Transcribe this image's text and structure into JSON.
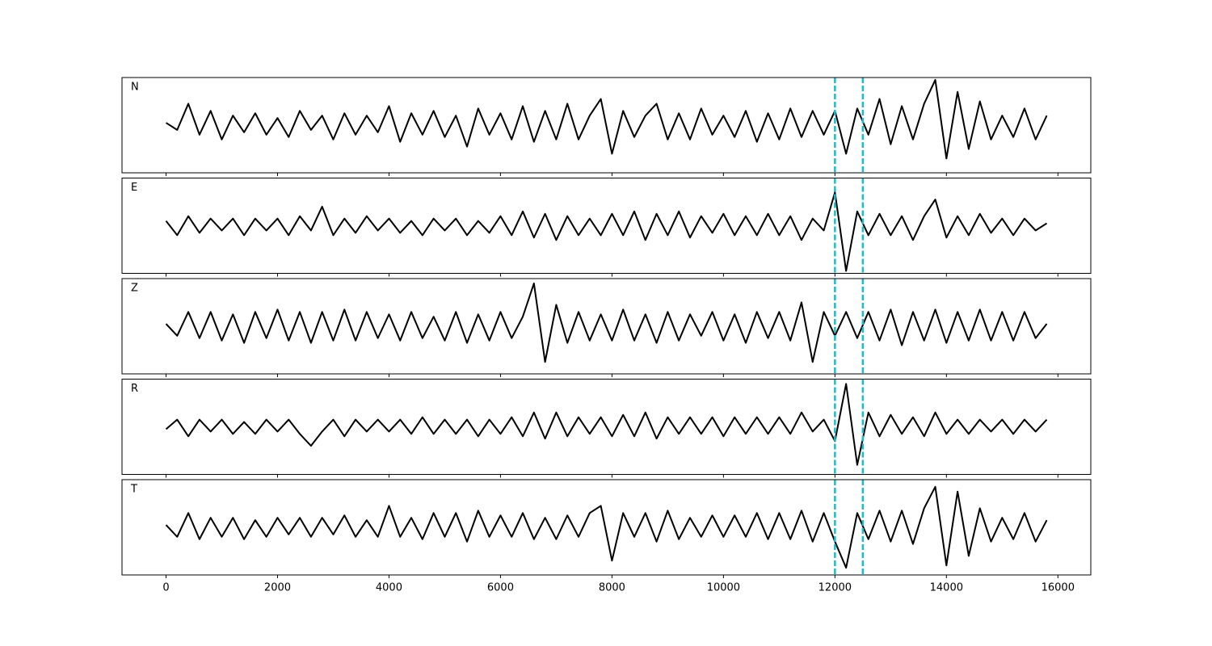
{
  "chart_data": [
    {
      "type": "line",
      "label": "N",
      "color": "#000000",
      "vlines": [
        12000,
        12500
      ],
      "vline_color": "#17becf",
      "xlim": [
        -790,
        16590
      ],
      "ylim": [
        -1,
        1
      ],
      "xticks": [
        0,
        2000,
        4000,
        6000,
        8000,
        10000,
        12000,
        14000,
        16000
      ],
      "x": [
        0,
        200,
        400,
        600,
        800,
        1000,
        1200,
        1400,
        1600,
        1800,
        2000,
        2200,
        2400,
        2600,
        2800,
        3000,
        3200,
        3400,
        3600,
        3800,
        4000,
        4200,
        4400,
        4600,
        4800,
        5000,
        5200,
        5400,
        5600,
        5800,
        6000,
        6200,
        6400,
        6600,
        6800,
        7000,
        7200,
        7400,
        7600,
        7800,
        8000,
        8200,
        8400,
        8600,
        8800,
        9000,
        9200,
        9400,
        9600,
        9800,
        10000,
        10200,
        10400,
        10600,
        10800,
        11000,
        11200,
        11400,
        11600,
        11800,
        12000,
        12200,
        12400,
        12600,
        12800,
        13000,
        13200,
        13400,
        13600,
        13800,
        14000,
        14200,
        14400,
        14600,
        14800,
        15000,
        15200,
        15400,
        15600,
        15800
      ],
      "values": [
        0.05,
        -0.1,
        0.45,
        -0.2,
        0.3,
        -0.3,
        0.2,
        -0.15,
        0.25,
        -0.2,
        0.15,
        -0.25,
        0.3,
        -0.1,
        0.2,
        -0.3,
        0.25,
        -0.2,
        0.2,
        -0.15,
        0.4,
        -0.35,
        0.25,
        -0.2,
        0.3,
        -0.25,
        0.2,
        -0.45,
        0.35,
        -0.2,
        0.25,
        -0.3,
        0.4,
        -0.35,
        0.3,
        -0.3,
        0.45,
        -0.3,
        0.2,
        0.55,
        -0.6,
        0.3,
        -0.25,
        0.2,
        0.45,
        -0.3,
        0.25,
        -0.3,
        0.35,
        -0.2,
        0.2,
        -0.25,
        0.3,
        -0.35,
        0.25,
        -0.3,
        0.35,
        -0.25,
        0.3,
        -0.2,
        0.3,
        -0.6,
        0.35,
        -0.2,
        0.55,
        -0.4,
        0.4,
        -0.3,
        0.45,
        0.95,
        -0.7,
        0.7,
        -0.5,
        0.5,
        -0.3,
        0.2,
        -0.25,
        0.35,
        -0.3,
        0.2
      ]
    },
    {
      "type": "line",
      "label": "E",
      "color": "#000000",
      "vlines": [
        12000,
        12500
      ],
      "vline_color": "#17becf",
      "xlim": [
        -790,
        16590
      ],
      "ylim": [
        -1,
        1
      ],
      "xticks": [
        0,
        2000,
        4000,
        6000,
        8000,
        10000,
        12000,
        14000,
        16000
      ],
      "x": [
        0,
        200,
        400,
        600,
        800,
        1000,
        1200,
        1400,
        1600,
        1800,
        2000,
        2200,
        2400,
        2600,
        2800,
        3000,
        3200,
        3400,
        3600,
        3800,
        4000,
        4200,
        4400,
        4600,
        4800,
        5000,
        5200,
        5400,
        5600,
        5800,
        6000,
        6200,
        6400,
        6600,
        6800,
        7000,
        7200,
        7400,
        7600,
        7800,
        8000,
        8200,
        8400,
        8600,
        8800,
        9000,
        9200,
        9400,
        9600,
        9800,
        10000,
        10200,
        10400,
        10600,
        10800,
        11000,
        11200,
        11400,
        11600,
        11800,
        12000,
        12200,
        12400,
        12600,
        12800,
        13000,
        13200,
        13400,
        13600,
        13800,
        14000,
        14200,
        14400,
        14600,
        14800,
        15000,
        15200,
        15400,
        15600,
        15800
      ],
      "values": [
        0.1,
        -0.2,
        0.2,
        -0.15,
        0.15,
        -0.1,
        0.15,
        -0.2,
        0.15,
        -0.1,
        0.15,
        -0.2,
        0.2,
        -0.1,
        0.4,
        -0.2,
        0.15,
        -0.15,
        0.2,
        -0.1,
        0.15,
        -0.15,
        0.1,
        -0.2,
        0.15,
        -0.1,
        0.15,
        -0.2,
        0.1,
        -0.15,
        0.2,
        -0.2,
        0.3,
        -0.25,
        0.25,
        -0.3,
        0.2,
        -0.2,
        0.15,
        -0.2,
        0.25,
        -0.2,
        0.3,
        -0.3,
        0.25,
        -0.2,
        0.3,
        -0.25,
        0.2,
        -0.15,
        0.25,
        -0.2,
        0.2,
        -0.2,
        0.25,
        -0.2,
        0.2,
        -0.3,
        0.15,
        -0.1,
        0.7,
        -0.95,
        0.3,
        -0.2,
        0.25,
        -0.2,
        0.2,
        -0.3,
        0.2,
        0.55,
        -0.25,
        0.2,
        -0.2,
        0.25,
        -0.15,
        0.15,
        -0.2,
        0.15,
        -0.1,
        0.05
      ]
    },
    {
      "type": "line",
      "label": "Z",
      "color": "#000000",
      "vlines": [
        12000,
        12500
      ],
      "vline_color": "#17becf",
      "xlim": [
        -790,
        16590
      ],
      "ylim": [
        -1,
        1
      ],
      "xticks": [
        0,
        2000,
        4000,
        6000,
        8000,
        10000,
        12000,
        14000,
        16000
      ],
      "x": [
        0,
        200,
        400,
        600,
        800,
        1000,
        1200,
        1400,
        1600,
        1800,
        2000,
        2200,
        2400,
        2600,
        2800,
        3000,
        3200,
        3400,
        3600,
        3800,
        4000,
        4200,
        4400,
        4600,
        4800,
        5000,
        5200,
        5400,
        5600,
        5800,
        6000,
        6200,
        6400,
        6600,
        6800,
        7000,
        7200,
        7400,
        7600,
        7800,
        8000,
        8200,
        8400,
        8600,
        8800,
        9000,
        9200,
        9400,
        9600,
        9800,
        10000,
        10200,
        10400,
        10600,
        10800,
        11000,
        11200,
        11400,
        11600,
        11800,
        12000,
        12200,
        12400,
        12600,
        12800,
        13000,
        13200,
        13400,
        13600,
        13800,
        14000,
        14200,
        14400,
        14600,
        14800,
        15000,
        15200,
        15400,
        15600,
        15800
      ],
      "values": [
        0.05,
        -0.2,
        0.3,
        -0.25,
        0.3,
        -0.3,
        0.25,
        -0.35,
        0.3,
        -0.25,
        0.35,
        -0.3,
        0.3,
        -0.35,
        0.3,
        -0.3,
        0.35,
        -0.3,
        0.3,
        -0.25,
        0.25,
        -0.3,
        0.3,
        -0.25,
        0.2,
        -0.3,
        0.3,
        -0.35,
        0.25,
        -0.3,
        0.3,
        -0.25,
        0.2,
        0.9,
        -0.75,
        0.45,
        -0.35,
        0.3,
        -0.3,
        0.25,
        -0.3,
        0.35,
        -0.3,
        0.25,
        -0.35,
        0.3,
        -0.3,
        0.25,
        -0.2,
        0.3,
        -0.3,
        0.25,
        -0.35,
        0.3,
        -0.25,
        0.3,
        -0.3,
        0.5,
        -0.75,
        0.3,
        -0.2,
        0.3,
        -0.25,
        0.3,
        -0.3,
        0.35,
        -0.4,
        0.3,
        -0.3,
        0.35,
        -0.35,
        0.3,
        -0.3,
        0.35,
        -0.3,
        0.3,
        -0.3,
        0.3,
        -0.25,
        0.05
      ]
    },
    {
      "type": "line",
      "label": "R",
      "color": "#000000",
      "vlines": [
        12000,
        12500
      ],
      "vline_color": "#17becf",
      "xlim": [
        -790,
        16590
      ],
      "ylim": [
        -1,
        1
      ],
      "xticks": [
        0,
        2000,
        4000,
        6000,
        8000,
        10000,
        12000,
        14000,
        16000
      ],
      "x": [
        0,
        200,
        400,
        600,
        800,
        1000,
        1200,
        1400,
        1600,
        1800,
        2000,
        2200,
        2400,
        2600,
        2800,
        3000,
        3200,
        3400,
        3600,
        3800,
        4000,
        4200,
        4400,
        4600,
        4800,
        5000,
        5200,
        5400,
        5600,
        5800,
        6000,
        6200,
        6400,
        6600,
        6800,
        7000,
        7200,
        7400,
        7600,
        7800,
        8000,
        8200,
        8400,
        8600,
        8800,
        9000,
        9200,
        9400,
        9600,
        9800,
        10000,
        10200,
        10400,
        10600,
        10800,
        11000,
        11200,
        11400,
        11600,
        11800,
        12000,
        12200,
        12400,
        12600,
        12800,
        13000,
        13200,
        13400,
        13600,
        13800,
        14000,
        14200,
        14400,
        14600,
        14800,
        15000,
        15200,
        15400,
        15600,
        15800
      ],
      "values": [
        -0.05,
        0.15,
        -0.2,
        0.15,
        -0.1,
        0.15,
        -0.15,
        0.1,
        -0.15,
        0.15,
        -0.1,
        0.15,
        -0.15,
        -0.4,
        -0.1,
        0.15,
        -0.2,
        0.15,
        -0.1,
        0.15,
        -0.1,
        0.15,
        -0.15,
        0.2,
        -0.15,
        0.15,
        -0.15,
        0.15,
        -0.2,
        0.15,
        -0.15,
        0.2,
        -0.2,
        0.3,
        -0.25,
        0.3,
        -0.2,
        0.2,
        -0.15,
        0.2,
        -0.2,
        0.25,
        -0.2,
        0.3,
        -0.25,
        0.2,
        -0.15,
        0.2,
        -0.15,
        0.2,
        -0.2,
        0.2,
        -0.15,
        0.2,
        -0.15,
        0.2,
        -0.15,
        0.3,
        -0.1,
        0.15,
        -0.3,
        0.9,
        -0.8,
        0.3,
        -0.2,
        0.25,
        -0.15,
        0.2,
        -0.2,
        0.3,
        -0.15,
        0.15,
        -0.15,
        0.15,
        -0.1,
        0.15,
        -0.15,
        0.15,
        -0.1,
        0.15
      ]
    },
    {
      "type": "line",
      "label": "T",
      "color": "#000000",
      "vlines": [
        12000,
        12500
      ],
      "vline_color": "#17becf",
      "xlim": [
        -790,
        16590
      ],
      "ylim": [
        -1,
        1
      ],
      "xticks": [
        0,
        2000,
        4000,
        6000,
        8000,
        10000,
        12000,
        14000,
        16000
      ],
      "x": [
        0,
        200,
        400,
        600,
        800,
        1000,
        1200,
        1400,
        1600,
        1800,
        2000,
        2200,
        2400,
        2600,
        2800,
        3000,
        3200,
        3400,
        3600,
        3800,
        4000,
        4200,
        4400,
        4600,
        4800,
        5000,
        5200,
        5400,
        5600,
        5800,
        6000,
        6200,
        6400,
        6600,
        6800,
        7000,
        7200,
        7400,
        7600,
        7800,
        8000,
        8200,
        8400,
        8600,
        8800,
        9000,
        9200,
        9400,
        9600,
        9800,
        10000,
        10200,
        10400,
        10600,
        10800,
        11000,
        11200,
        11400,
        11600,
        11800,
        12000,
        12200,
        12400,
        12600,
        12800,
        13000,
        13200,
        13400,
        13600,
        13800,
        14000,
        14200,
        14400,
        14600,
        14800,
        15000,
        15200,
        15400,
        15600,
        15800
      ],
      "values": [
        0.05,
        -0.2,
        0.3,
        -0.25,
        0.2,
        -0.2,
        0.2,
        -0.25,
        0.15,
        -0.2,
        0.2,
        -0.15,
        0.2,
        -0.2,
        0.2,
        -0.15,
        0.25,
        -0.2,
        0.15,
        -0.2,
        0.45,
        -0.2,
        0.2,
        -0.25,
        0.3,
        -0.2,
        0.3,
        -0.3,
        0.35,
        -0.2,
        0.25,
        -0.2,
        0.3,
        -0.25,
        0.2,
        -0.25,
        0.25,
        -0.2,
        0.3,
        0.45,
        -0.7,
        0.3,
        -0.2,
        0.3,
        -0.3,
        0.35,
        -0.25,
        0.2,
        -0.2,
        0.25,
        -0.2,
        0.25,
        -0.2,
        0.3,
        -0.25,
        0.3,
        -0.25,
        0.35,
        -0.3,
        0.3,
        -0.3,
        -0.85,
        0.3,
        -0.25,
        0.35,
        -0.3,
        0.35,
        -0.35,
        0.4,
        0.85,
        -0.8,
        0.75,
        -0.6,
        0.4,
        -0.3,
        0.2,
        -0.25,
        0.3,
        -0.3,
        0.15
      ]
    }
  ]
}
